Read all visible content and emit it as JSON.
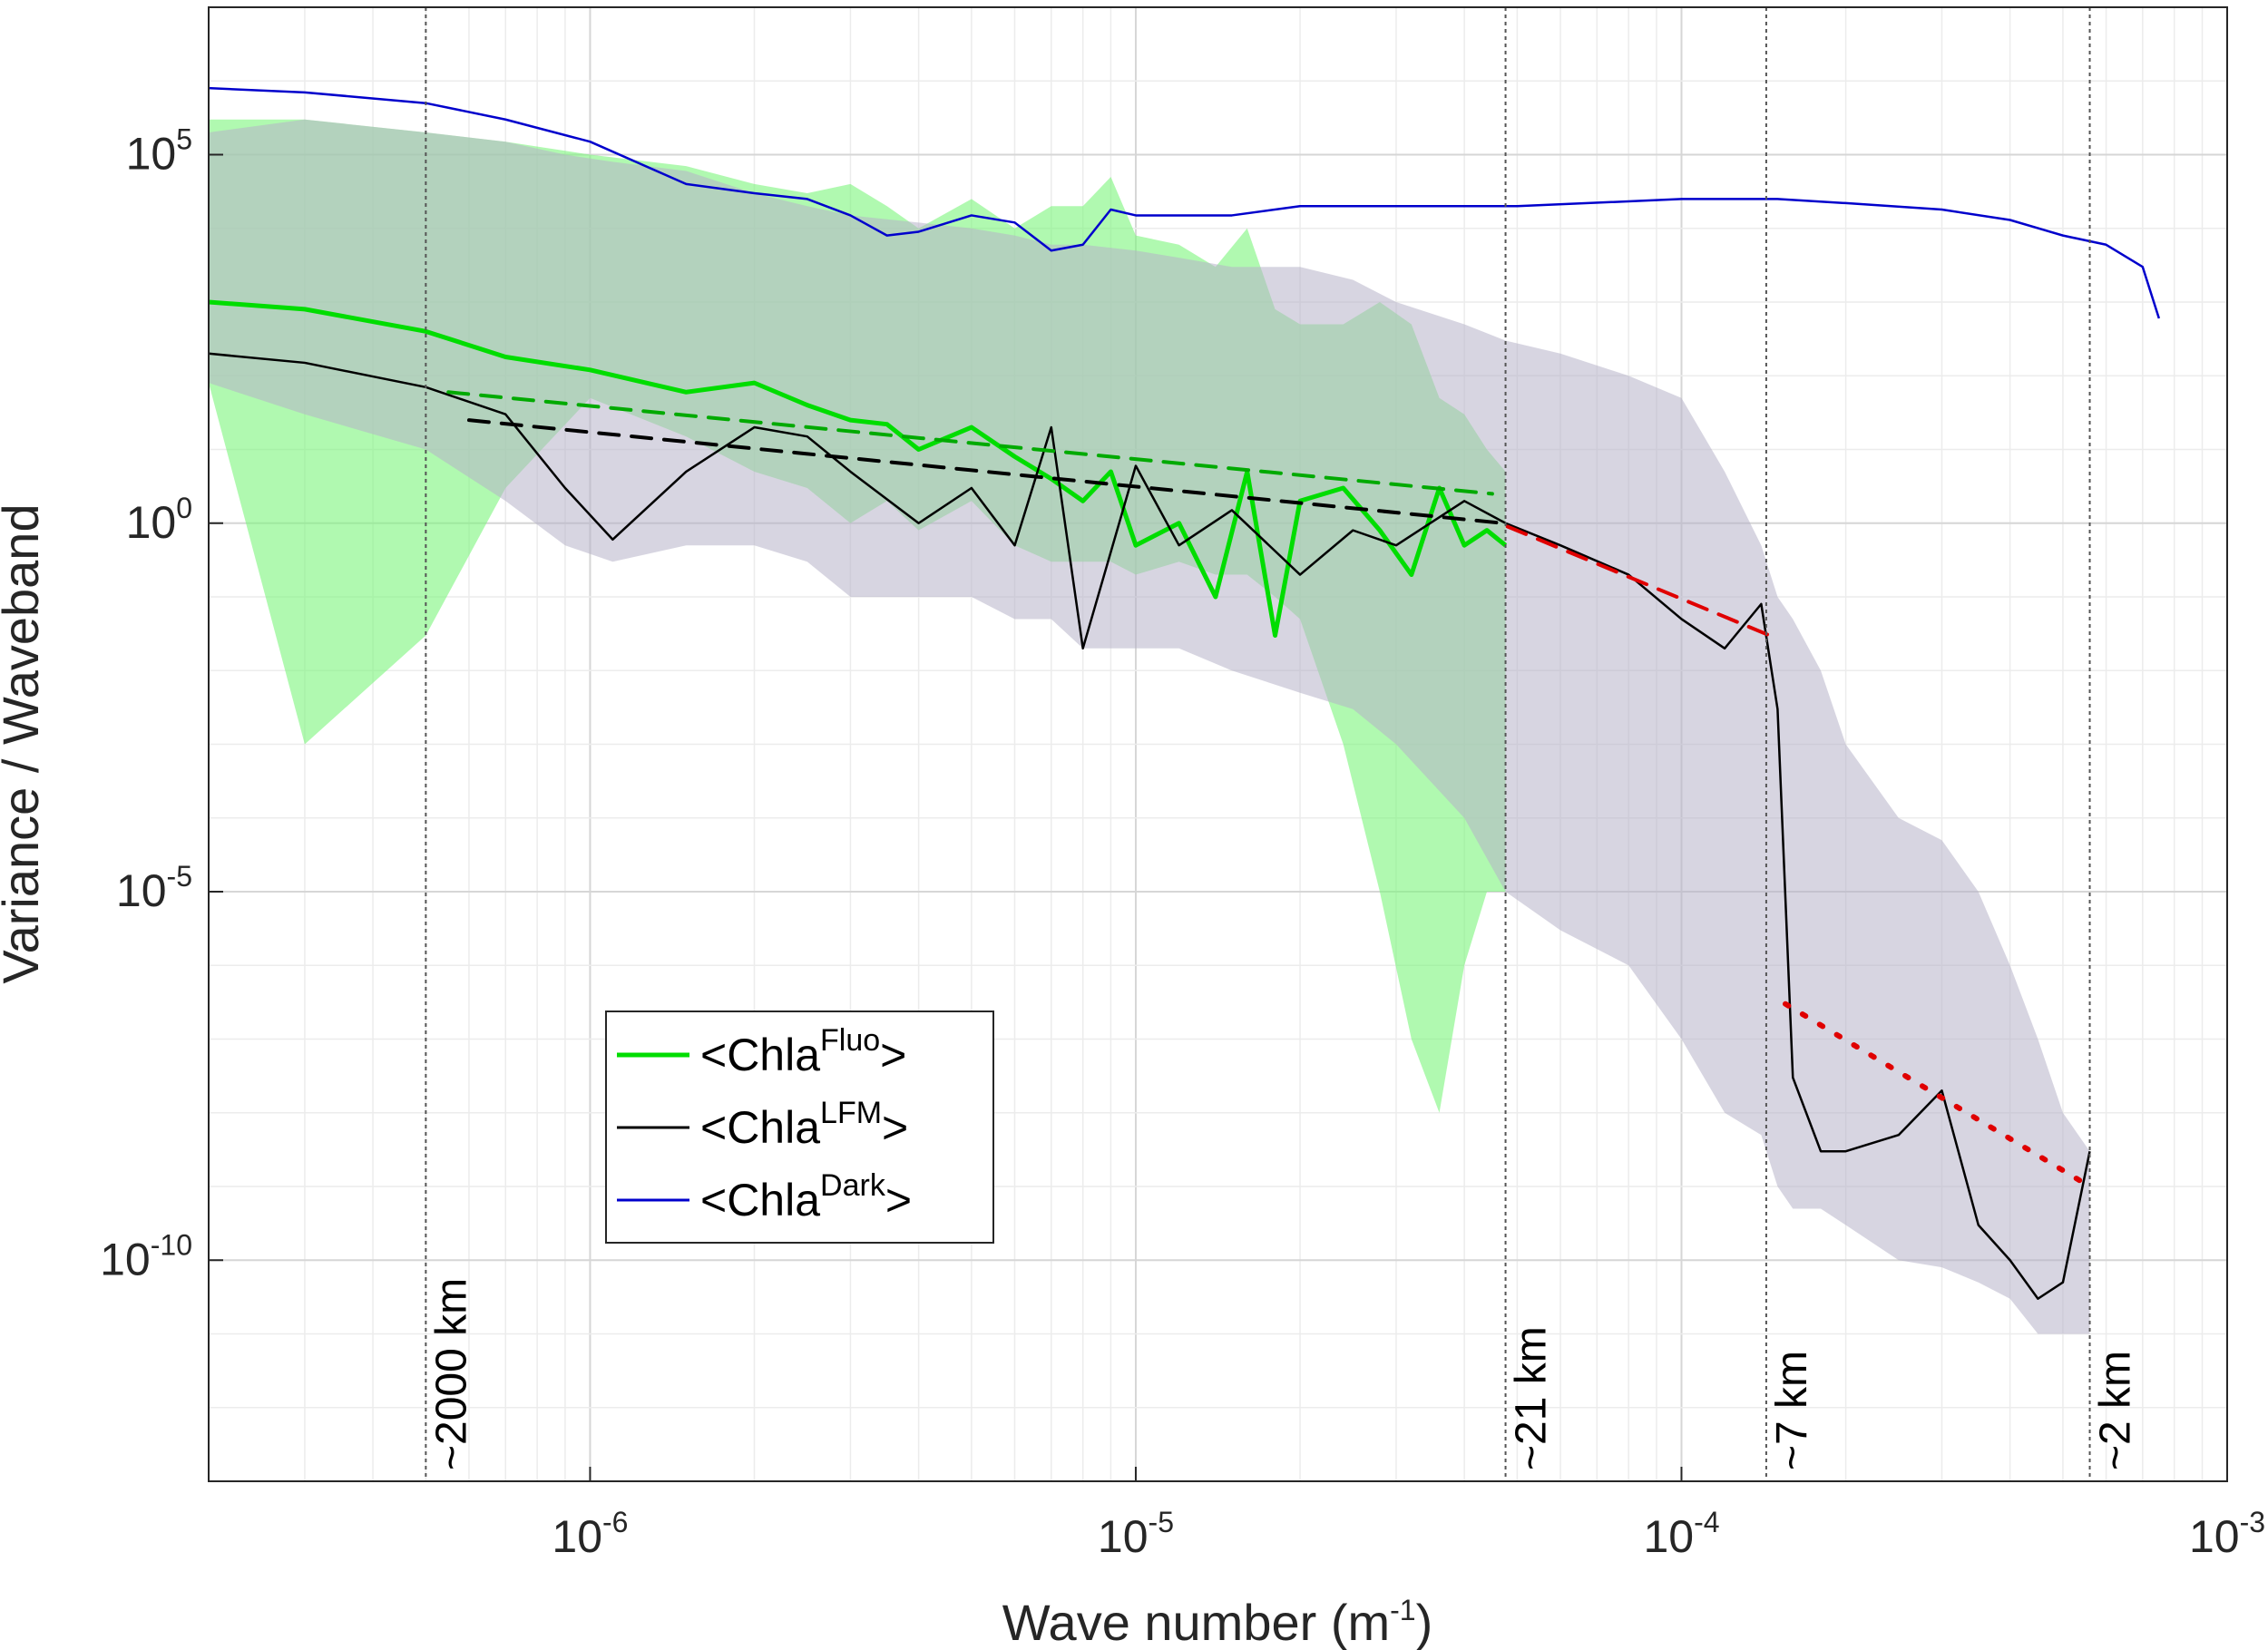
{
  "chart_data": {
    "type": "line",
    "title": "",
    "xlabel": "Wave number (m",
    "xlabel_sup": "-1",
    "xlabel_close": ")",
    "ylabel": "Variance / Waveband",
    "xscale": "log",
    "yscale": "log",
    "xlim": [
      2e-07,
      0.001
    ],
    "ylim": [
      1e-13,
      10000000.0
    ],
    "grid": true,
    "x_ticks": [
      {
        "value": 1e-06,
        "base": "10",
        "exp": "-6"
      },
      {
        "value": 1e-05,
        "base": "10",
        "exp": "-5"
      },
      {
        "value": 0.0001,
        "base": "10",
        "exp": "-4"
      },
      {
        "value": 0.001,
        "base": "10",
        "exp": "-3"
      }
    ],
    "y_ticks": [
      {
        "value": 100000.0,
        "base": "10",
        "exp": "5"
      },
      {
        "value": 1,
        "base": "10",
        "exp": "0"
      },
      {
        "value": 1e-05,
        "base": "10",
        "exp": "-5"
      },
      {
        "value": 1e-10,
        "base": "10",
        "exp": "-10"
      }
    ],
    "reference_lines": [
      {
        "x": 5e-07,
        "label": "~2000 km"
      },
      {
        "x": 4.76e-05,
        "label": "~21 km"
      },
      {
        "x": 0.000143,
        "label": "~7 km"
      },
      {
        "x": 0.00056,
        "label": "~2 km"
      }
    ],
    "series": [
      {
        "name": "Chla Fluo",
        "legend_base": "<Chla",
        "legend_sup": "Fluo",
        "legend_close": ">",
        "color": "#00dd00",
        "x": [
          2e-07,
          3e-07,
          5e-07,
          7e-07,
          1e-06,
          1.5e-06,
          2e-06,
          2.5e-06,
          3e-06,
          3.5e-06,
          4e-06,
          5e-06,
          6e-06,
          7e-06,
          8e-06,
          9e-06,
          1e-05,
          1.2e-05,
          1.4e-05,
          1.6e-05,
          1.8e-05,
          2e-05,
          2.4e-05,
          2.8e-05,
          3.2e-05,
          3.6e-05,
          4e-05,
          4.4e-05,
          4.76e-05
        ],
        "y": [
          1000,
          800,
          400,
          180,
          120,
          60,
          80,
          40,
          25,
          22,
          10,
          20,
          8,
          4,
          2,
          5,
          0.5,
          1,
          0.1,
          5,
          0.03,
          2,
          3,
          0.8,
          0.2,
          3,
          0.5,
          0.8,
          0.5
        ],
        "band_lower": [
          80,
          0.001,
          0.03,
          3,
          50,
          15,
          5,
          3,
          1,
          2,
          0.8,
          2,
          0.5,
          0.3,
          0.3,
          0.3,
          0.2,
          0.3,
          0.2,
          0.2,
          0.1,
          0.05,
          0.001,
          1e-05,
          1e-07,
          1e-08,
          1e-06,
          1e-05,
          1e-05
        ],
        "band_upper": [
          300000.0,
          300000.0,
          200000.0,
          150000.0,
          100000.0,
          70000.0,
          40000.0,
          30000.0,
          40000.0,
          20000.0,
          10000.0,
          25000.0,
          10000.0,
          20000.0,
          20000.0,
          50000.0,
          8000.0,
          6000.0,
          3000.0,
          10000.0,
          800.0,
          500.0,
          500.0,
          1000.0,
          500.0,
          50,
          30,
          10,
          5
        ]
      },
      {
        "name": "Chla LFM",
        "legend_base": "<Chla",
        "legend_sup": "LFM",
        "legend_close": ">",
        "color": "#000000",
        "x": [
          2e-07,
          3e-07,
          5e-07,
          7e-07,
          9e-07,
          1.1e-06,
          1.5e-06,
          2e-06,
          2.5e-06,
          3e-06,
          4e-06,
          5e-06,
          6e-06,
          7e-06,
          8e-06,
          1e-05,
          1.2e-05,
          1.5e-05,
          2e-05,
          2.5e-05,
          3e-05,
          4e-05,
          4.76e-05,
          6e-05,
          8e-05,
          0.0001,
          0.00012,
          0.00014,
          0.00015,
          0.00016,
          0.00018,
          0.0002,
          0.00025,
          0.0003,
          0.00035,
          0.0004,
          0.00045,
          0.0005,
          0.00056
        ],
        "y": [
          200,
          150,
          70,
          30,
          3,
          0.6,
          5,
          20,
          15,
          5,
          1,
          3,
          0.5,
          20,
          0.02,
          6,
          0.5,
          1.5,
          0.2,
          0.8,
          0.5,
          2,
          1,
          0.5,
          0.2,
          0.05,
          0.02,
          0.08,
          0.003,
          3e-08,
          3e-09,
          3e-09,
          5e-09,
          2e-08,
          3e-10,
          1e-10,
          3e-11,
          5e-11,
          3e-09
        ],
        "band_lower": [
          80,
          30,
          10,
          2,
          0.5,
          0.3,
          0.5,
          0.5,
          0.3,
          0.1,
          0.1,
          0.1,
          0.05,
          0.05,
          0.02,
          0.02,
          0.02,
          0.01,
          0.005,
          0.003,
          0.001,
          0.0001,
          1e-05,
          3e-06,
          1e-06,
          1e-07,
          1e-08,
          5e-09,
          1e-09,
          5e-10,
          5e-10,
          3e-10,
          1e-10,
          8e-11,
          5e-11,
          3e-11,
          1e-11,
          1e-11,
          1e-11
        ],
        "band_upper": [
          200000.0,
          300000.0,
          200000.0,
          150000.0,
          100000.0,
          80000.0,
          60000.0,
          30000.0,
          20000.0,
          15000.0,
          12000.0,
          10000.0,
          8000.0,
          6000.0,
          6000.0,
          5000.0,
          4000.0,
          3000.0,
          3000.0,
          2000.0,
          1000.0,
          500,
          300,
          200,
          100,
          50,
          5,
          0.5,
          0.1,
          0.05,
          0.01,
          0.001,
          0.0001,
          5e-05,
          1e-05,
          1e-06,
          1e-07,
          1e-08,
          3e-09
        ]
      },
      {
        "name": "Chla Dark",
        "legend_base": "<Chla",
        "legend_sup": "Dark",
        "legend_close": ">",
        "color": "#0000cc",
        "x": [
          2e-07,
          3e-07,
          5e-07,
          7e-07,
          1e-06,
          1.5e-06,
          2e-06,
          2.5e-06,
          3e-06,
          3.5e-06,
          4e-06,
          5e-06,
          6e-06,
          7e-06,
          8e-06,
          9e-06,
          1e-05,
          1.5e-05,
          2e-05,
          3e-05,
          5e-05,
          0.0001,
          0.00015,
          0.0002,
          0.0003,
          0.0004,
          0.0005,
          0.0006,
          0.0007,
          0.00075
        ],
        "y": [
          800000.0,
          700000.0,
          500000.0,
          300000.0,
          150000.0,
          40000.0,
          30000.0,
          25000.0,
          15000.0,
          8000.0,
          9000.0,
          15000.0,
          12000.0,
          5000.0,
          6000.0,
          18000.0,
          15000.0,
          15000.0,
          20000.0,
          20000.0,
          20000.0,
          25000.0,
          25000.0,
          22000.0,
          18000.0,
          13000.0,
          8000.0,
          6000.0,
          3000.0,
          600
        ]
      }
    ],
    "fit_lines": [
      {
        "name": "Fluo fit",
        "color": "#00aa00",
        "style": "dashed",
        "x": [
          5.5e-07,
          4.5e-05
        ],
        "y": [
          60,
          2.5
        ]
      },
      {
        "name": "LFM fit",
        "color": "#000000",
        "style": "dashed",
        "x": [
          6e-07,
          4.7e-05
        ],
        "y": [
          25,
          1
        ]
      },
      {
        "name": "LFM fit 21-7 km",
        "color": "#e00000",
        "style": "dashed",
        "x": [
          4.8e-05,
          0.000145
        ],
        "y": [
          0.9,
          0.03
        ]
      },
      {
        "name": "LFM fit 7-2 km",
        "color": "#e00000",
        "style": "dotted",
        "x": [
          0.000155,
          0.00056
        ],
        "y": [
          3e-07,
          1e-09
        ]
      }
    ],
    "legend": {
      "position": "lower-left"
    }
  }
}
